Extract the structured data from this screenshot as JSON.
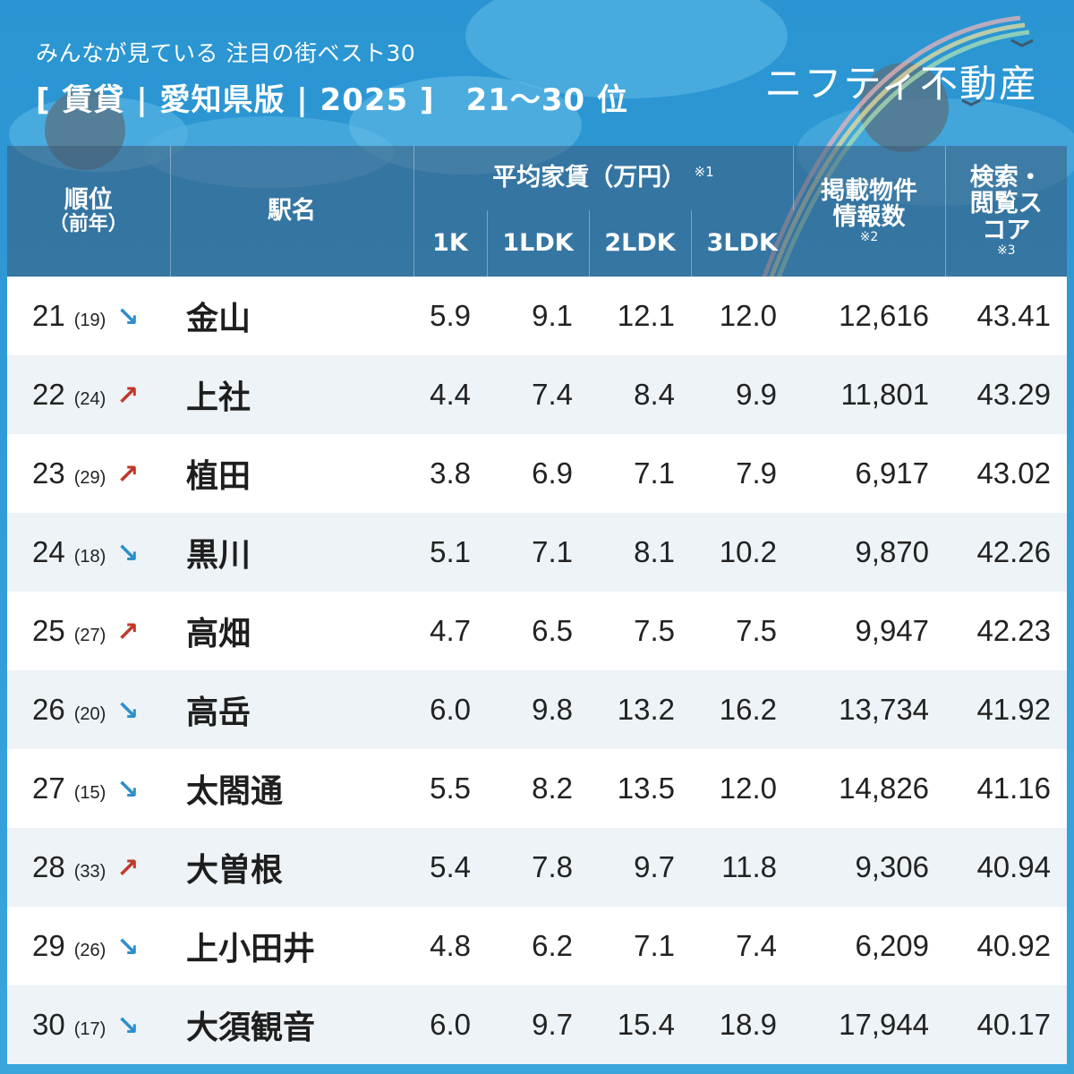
{
  "header": {
    "subtitle": "みんなが見ている 注目の街ベスト30",
    "title": "[ 賃貸 | 愛知県版 | 2025 ]　21〜30 位",
    "logo": "ニフティ不動産"
  },
  "table": {
    "headers": {
      "rank": "順位",
      "rank_sub": "（前年）",
      "station": "駅名",
      "rent_group": "平均家賃（万円）",
      "rent_note": "※1",
      "rent_cols": [
        "1K",
        "1LDK",
        "2LDK",
        "3LDK"
      ],
      "listings": "掲載物件情報数",
      "listings_note": "※2",
      "score": "検索・閲覧スコア",
      "score_note": "※3"
    },
    "rows": [
      {
        "rank": "21",
        "prev": "(19)",
        "trend": "down",
        "station": "金山",
        "k1": "5.9",
        "ldk1": "9.1",
        "ldk2": "12.1",
        "ldk3": "12.0",
        "listings": "12,616",
        "score": "43.41"
      },
      {
        "rank": "22",
        "prev": "(24)",
        "trend": "up",
        "station": "上社",
        "k1": "4.4",
        "ldk1": "7.4",
        "ldk2": "8.4",
        "ldk3": "9.9",
        "listings": "11,801",
        "score": "43.29"
      },
      {
        "rank": "23",
        "prev": "(29)",
        "trend": "up",
        "station": "植田",
        "k1": "3.8",
        "ldk1": "6.9",
        "ldk2": "7.1",
        "ldk3": "7.9",
        "listings": "6,917",
        "score": "43.02"
      },
      {
        "rank": "24",
        "prev": "(18)",
        "trend": "down",
        "station": "黒川",
        "k1": "5.1",
        "ldk1": "7.1",
        "ldk2": "8.1",
        "ldk3": "10.2",
        "listings": "9,870",
        "score": "42.26"
      },
      {
        "rank": "25",
        "prev": "(27)",
        "trend": "up",
        "station": "高畑",
        "k1": "4.7",
        "ldk1": "6.5",
        "ldk2": "7.5",
        "ldk3": "7.5",
        "listings": "9,947",
        "score": "42.23"
      },
      {
        "rank": "26",
        "prev": "(20)",
        "trend": "down",
        "station": "高岳",
        "k1": "6.0",
        "ldk1": "9.8",
        "ldk2": "13.2",
        "ldk3": "16.2",
        "listings": "13,734",
        "score": "41.92"
      },
      {
        "rank": "27",
        "prev": "(15)",
        "trend": "down",
        "station": "太閤通",
        "k1": "5.5",
        "ldk1": "8.2",
        "ldk2": "13.5",
        "ldk3": "12.0",
        "listings": "14,826",
        "score": "41.16"
      },
      {
        "rank": "28",
        "prev": "(33)",
        "trend": "up",
        "station": "大曽根",
        "k1": "5.4",
        "ldk1": "7.8",
        "ldk2": "9.7",
        "ldk3": "11.8",
        "listings": "9,306",
        "score": "40.94"
      },
      {
        "rank": "29",
        "prev": "(26)",
        "trend": "down",
        "station": "上小田井",
        "k1": "4.8",
        "ldk1": "6.2",
        "ldk2": "7.1",
        "ldk3": "7.4",
        "listings": "6,209",
        "score": "40.92"
      },
      {
        "rank": "30",
        "prev": "(17)",
        "trend": "down",
        "station": "大須観音",
        "k1": "6.0",
        "ldk1": "9.7",
        "ldk2": "15.4",
        "ldk3": "18.9",
        "listings": "17,944",
        "score": "40.17"
      }
    ]
  },
  "icons": {
    "up": "trend-up-arrow-icon",
    "down": "trend-down-arrow-icon"
  },
  "colors": {
    "background": "#2f9ad4",
    "up": "#c0392b",
    "down": "#2e8fcc",
    "row_alt": "#edf3f7"
  }
}
